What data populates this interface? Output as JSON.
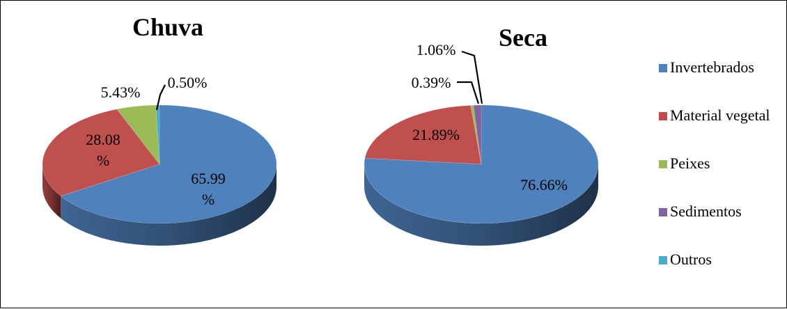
{
  "legend": {
    "items": [
      {
        "label": "Invertebrados",
        "color": "#4F81BD"
      },
      {
        "label": "Material vegetal",
        "color": "#C0504D"
      },
      {
        "label": "Peixes",
        "color": "#9BBB59"
      },
      {
        "label": "Sedimentos",
        "color": "#8064A2"
      },
      {
        "label": "Outros",
        "color": "#4BACC6"
      }
    ]
  },
  "chart_data": [
    {
      "type": "pie",
      "title": "Chuva",
      "categories": [
        "Invertebrados",
        "Material vegetal",
        "Peixes",
        "Sedimentos",
        "Outros"
      ],
      "values": [
        65.99,
        28.08,
        5.43,
        0,
        0.5
      ],
      "labels": [
        [
          "65.99",
          "%"
        ],
        [
          "28.08",
          "%"
        ],
        [
          "5.43%"
        ],
        null,
        [
          "0.50%"
        ]
      ],
      "colors": [
        "#4F81BD",
        "#C0504D",
        "#9BBB59",
        "#8064A2",
        "#4BACC6"
      ],
      "style": "3d"
    },
    {
      "type": "pie",
      "title": "Seca",
      "categories": [
        "Invertebrados",
        "Material vegetal",
        "Peixes",
        "Sedimentos",
        "Outros"
      ],
      "values": [
        76.66,
        21.89,
        0.39,
        1.06,
        0
      ],
      "labels": [
        [
          "76.66%"
        ],
        [
          "21.89%"
        ],
        [
          "0.39%"
        ],
        [
          "1.06%"
        ],
        null
      ],
      "colors": [
        "#4F81BD",
        "#C0504D",
        "#9BBB59",
        "#8064A2",
        "#4BACC6"
      ],
      "style": "3d"
    }
  ]
}
